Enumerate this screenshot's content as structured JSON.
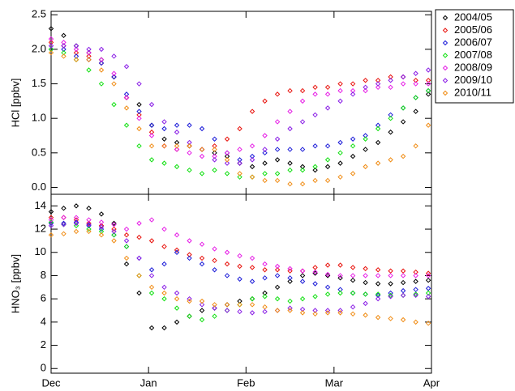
{
  "chart_data": [
    {
      "type": "scatter",
      "ylabel": "HCl [ppbv]",
      "legend": "outside-right",
      "xlim": [
        0,
        121
      ],
      "ylim": [
        -0.1,
        2.55
      ],
      "yticks": [
        {
          "value": 0,
          "label": "0.0"
        },
        0.5,
        {
          "value": 1,
          "label": "1.0"
        },
        1.5,
        {
          "value": 2,
          "label": "2.0"
        },
        2.5
      ],
      "x": [
        0,
        4,
        8,
        12,
        16,
        20,
        24,
        28,
        32,
        36,
        40,
        44,
        48,
        52,
        56,
        60,
        64,
        68,
        72,
        76,
        80,
        84,
        88,
        92,
        96,
        100,
        104,
        108,
        112,
        116,
        120
      ],
      "series": [
        {
          "name": "2004/05",
          "color": "#000000",
          "values": [
            2.3,
            2.2,
            2.05,
            1.95,
            1.85,
            1.6,
            1.3,
            1.2,
            0.9,
            0.7,
            0.65,
            0.6,
            0.55,
            0.5,
            0.45,
            0.35,
            0.3,
            0.35,
            0.4,
            0.35,
            0.3,
            0.25,
            0.3,
            0.35,
            0.45,
            0.55,
            0.65,
            0.8,
            0.95,
            1.1,
            1.35
          ]
        },
        {
          "name": "2005/06",
          "color": "#e8120c",
          "values": [
            2.1,
            2.05,
            1.95,
            1.9,
            1.8,
            1.6,
            1.3,
            1.05,
            0.8,
            0.6,
            0.55,
            0.6,
            0.55,
            0.6,
            0.7,
            0.85,
            1.1,
            1.25,
            1.35,
            1.4,
            1.4,
            1.45,
            1.45,
            1.5,
            1.5,
            1.55,
            1.55,
            1.6,
            1.6,
            1.55,
            1.55
          ]
        },
        {
          "name": "2006/07",
          "color": "#1c1cd8",
          "values": [
            2.0,
            2.0,
            1.9,
            1.85,
            1.8,
            1.6,
            1.35,
            1.1,
            0.9,
            0.85,
            0.9,
            0.9,
            0.85,
            0.7,
            0.5,
            0.4,
            0.45,
            0.5,
            0.55,
            0.55,
            0.55,
            0.6,
            0.6,
            0.65,
            0.7,
            0.75,
            0.9,
            1.05,
            1.15,
            1.3,
            1.4
          ]
        },
        {
          "name": "2007/08",
          "color": "#12e012",
          "values": [
            2.0,
            1.95,
            1.85,
            1.7,
            1.5,
            1.2,
            0.9,
            0.6,
            0.4,
            0.35,
            0.3,
            0.25,
            0.2,
            0.25,
            0.2,
            0.15,
            0.15,
            0.2,
            0.2,
            0.25,
            0.25,
            0.3,
            0.4,
            0.5,
            0.6,
            0.7,
            0.85,
            1.0,
            1.15,
            1.3,
            1.4
          ]
        },
        {
          "name": "2008/09",
          "color": "#e61ee6",
          "values": [
            2.15,
            2.1,
            2.0,
            1.95,
            1.85,
            1.65,
            1.3,
            1.0,
            0.75,
            0.6,
            0.55,
            0.5,
            0.45,
            0.45,
            0.5,
            0.55,
            0.6,
            0.75,
            0.95,
            1.1,
            1.25,
            1.35,
            1.35,
            1.4,
            1.4,
            1.4,
            1.45,
            1.45,
            1.5,
            1.5,
            1.5
          ]
        },
        {
          "name": "2009/10",
          "color": "#8a1ee6",
          "values": [
            2.05,
            2.05,
            2.05,
            2.0,
            2.0,
            1.9,
            1.75,
            1.5,
            1.2,
            0.95,
            0.8,
            0.65,
            0.55,
            0.4,
            0.35,
            0.35,
            0.4,
            0.55,
            0.7,
            0.85,
            0.95,
            1.05,
            1.15,
            1.25,
            1.35,
            1.45,
            1.5,
            1.55,
            1.6,
            1.65,
            1.7
          ]
        },
        {
          "name": "2010/11",
          "color": "#f08c14",
          "values": [
            1.95,
            1.9,
            1.85,
            1.85,
            1.7,
            1.5,
            1.15,
            0.85,
            0.6,
            0.6,
            0.6,
            0.6,
            0.55,
            0.55,
            0.4,
            0.2,
            0.15,
            0.1,
            0.1,
            0.05,
            0.05,
            0.1,
            0.1,
            0.15,
            0.2,
            0.3,
            0.35,
            0.4,
            0.45,
            0.6,
            0.9
          ]
        }
      ]
    },
    {
      "type": "scatter",
      "ylabel": "HNO₃ [ppbv]",
      "xlim": [
        0,
        121
      ],
      "ylim": [
        -0.4,
        15
      ],
      "xticks": [
        {
          "value": 0,
          "label": "Dec"
        },
        {
          "value": 31,
          "label": "Jan"
        },
        {
          "value": 62,
          "label": "Feb"
        },
        {
          "value": 90,
          "label": "Mar"
        },
        {
          "value": 121,
          "label": "Apr"
        }
      ],
      "yticks": [
        0,
        2,
        4,
        6,
        8,
        10,
        12,
        14
      ],
      "x": [
        0,
        4,
        8,
        12,
        16,
        20,
        24,
        28,
        32,
        36,
        40,
        44,
        48,
        52,
        56,
        60,
        64,
        68,
        72,
        76,
        80,
        84,
        88,
        92,
        96,
        100,
        104,
        108,
        112,
        116,
        120
      ],
      "series": [
        {
          "color": "#000000",
          "values": [
            13.5,
            13.8,
            14.0,
            13.8,
            13.3,
            12.5,
            9,
            6.5,
            3.5,
            3.5,
            4.0,
            4.5,
            5.0,
            5.2,
            5.5,
            5.8,
            6.0,
            6.5,
            7.0,
            7.5,
            8.0,
            8.2,
            8.0,
            7.8,
            7.6,
            7.4,
            7.3,
            7.3,
            7.4,
            7.5,
            7.6
          ]
        },
        {
          "color": "#e8120c",
          "values": [
            13.0,
            13.0,
            12.8,
            12.5,
            12.3,
            12.0,
            11.5,
            11.3,
            11.0,
            10.5,
            10.2,
            9.8,
            9.5,
            9.3,
            9.0,
            8.8,
            8.7,
            8.5,
            8.5,
            8.4,
            8.4,
            8.7,
            8.9,
            8.9,
            8.7,
            8.6,
            8.5,
            8.4,
            8.4,
            8.3,
            8.2
          ]
        },
        {
          "color": "#1c1cd8",
          "values": [
            12.5,
            12.5,
            12.6,
            12.3,
            12.0,
            11.5,
            10.5,
            9.5,
            8.5,
            9.0,
            10.0,
            9.5,
            9.0,
            8.5,
            8.0,
            7.7,
            7.5,
            7.8,
            8.0,
            7.8,
            7.5,
            7.3,
            7.0,
            6.8,
            6.5,
            6.4,
            6.3,
            6.5,
            6.7,
            6.8,
            6.9
          ]
        },
        {
          "color": "#12e012",
          "values": [
            12.6,
            12.4,
            12.3,
            12.0,
            11.8,
            11.5,
            10.5,
            8.0,
            6.5,
            6.0,
            5.2,
            4.5,
            4.2,
            4.5,
            5.0,
            5.5,
            6.0,
            6.2,
            6.0,
            5.8,
            6.0,
            6.2,
            6.4,
            6.5,
            6.5,
            6.4,
            6.4,
            6.3,
            6.3,
            6.4,
            6.5
          ]
        },
        {
          "color": "#e61ee6",
          "values": [
            12.8,
            13.0,
            13.0,
            12.8,
            12.6,
            12.4,
            12.0,
            12.5,
            12.8,
            12.0,
            11.5,
            11.0,
            10.7,
            10.3,
            10.0,
            9.7,
            9.5,
            9.0,
            8.8,
            8.6,
            8.4,
            8.3,
            8.1,
            8.0,
            8.0,
            8.0,
            8.0,
            8.0,
            8.0,
            8.0,
            8.0
          ]
        },
        {
          "color": "#8a1ee6",
          "values": [
            12.3,
            12.4,
            12.5,
            12.4,
            12.2,
            11.8,
            11.0,
            9.5,
            8.0,
            7.0,
            6.5,
            6.0,
            5.5,
            5.2,
            5.0,
            4.9,
            4.8,
            4.9,
            5.0,
            5.2,
            5.1,
            5.0,
            5.0,
            5.0,
            5.3,
            5.6,
            6.0,
            6.2,
            6.3,
            6.3,
            6.2
          ]
        },
        {
          "color": "#f08c14",
          "values": [
            11.5,
            11.6,
            11.8,
            11.8,
            11.5,
            11.0,
            9.5,
            8.0,
            7.0,
            6.5,
            6.0,
            5.8,
            5.8,
            5.5,
            5.5,
            5.5,
            5.5,
            5.3,
            5.0,
            5.0,
            4.8,
            4.7,
            4.8,
            4.8,
            4.7,
            4.6,
            4.4,
            4.3,
            4.2,
            4.0,
            3.9
          ]
        }
      ]
    }
  ]
}
